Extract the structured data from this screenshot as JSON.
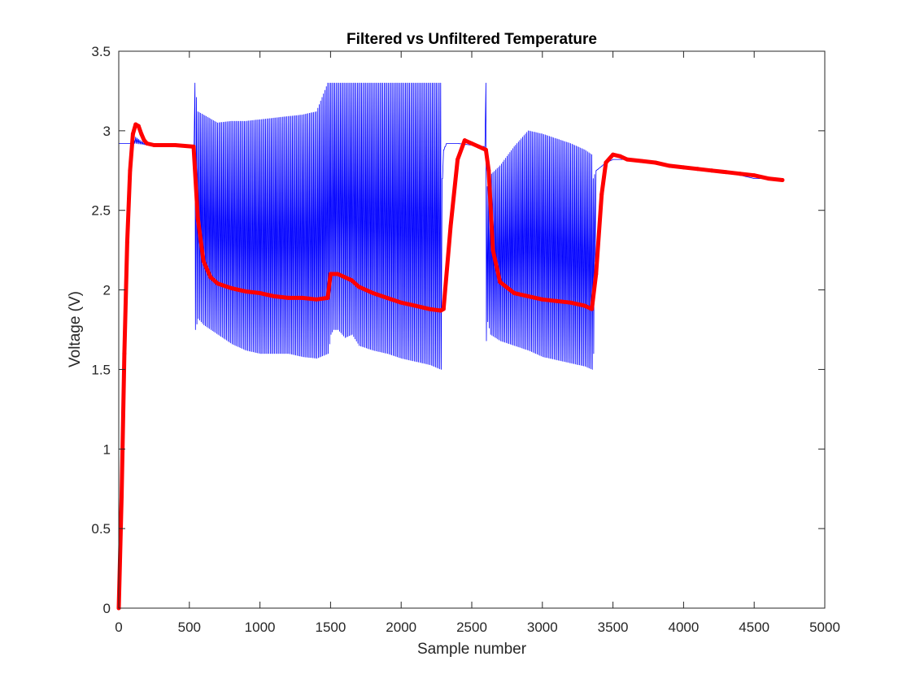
{
  "chart_data": {
    "type": "line",
    "title": "Filtered vs Unfiltered Temperature",
    "xlabel": "Sample number",
    "ylabel": "Voltage (V)",
    "xlim": [
      0,
      5000
    ],
    "ylim": [
      0,
      3.5
    ],
    "x_ticks": [
      0,
      500,
      1000,
      1500,
      2000,
      2500,
      3000,
      3500,
      4000,
      4500,
      5000
    ],
    "y_ticks": [
      0,
      0.5,
      1,
      1.5,
      2,
      2.5,
      3,
      3.5
    ],
    "x_tick_labels": [
      "0",
      "500",
      "1000",
      "1500",
      "2000",
      "2500",
      "3000",
      "3500",
      "4000",
      "4500",
      "5000"
    ],
    "y_tick_labels": [
      "0",
      "0.5",
      "1",
      "1.5",
      "2",
      "2.5",
      "3",
      "3.5"
    ],
    "grid": false,
    "legend": "none",
    "series": [
      {
        "id": "unfiltered",
        "color": "#0000ff",
        "style": "thin-line",
        "x": [
          0,
          100,
          120,
          200,
          300,
          400,
          530,
          540,
          560,
          600,
          700,
          800,
          900,
          1000,
          1100,
          1200,
          1300,
          1400,
          1480,
          1500,
          1520,
          1550,
          1600,
          1650,
          1700,
          1800,
          1900,
          2000,
          2100,
          2200,
          2280,
          2290,
          2300,
          2320,
          2400,
          2500,
          2590,
          2600,
          2610,
          2630,
          2700,
          2800,
          2900,
          3000,
          3100,
          3200,
          3300,
          3350,
          3360,
          3380,
          3450,
          3500,
          3600,
          3700,
          3800,
          3900,
          4000,
          4100,
          4200,
          4300,
          4400,
          4500,
          4600,
          4700
        ],
        "y_low": [
          2.92,
          2.92,
          2.92,
          2.91,
          2.91,
          2.91,
          2.91,
          1.75,
          1.82,
          1.78,
          1.72,
          1.66,
          1.62,
          1.6,
          1.6,
          1.6,
          1.58,
          1.57,
          1.6,
          1.72,
          1.75,
          1.75,
          1.7,
          1.72,
          1.65,
          1.62,
          1.6,
          1.57,
          1.55,
          1.53,
          1.5,
          2.7,
          2.88,
          2.92,
          2.92,
          2.91,
          2.9,
          1.68,
          1.8,
          1.72,
          1.68,
          1.65,
          1.62,
          1.58,
          1.56,
          1.54,
          1.52,
          1.5,
          1.6,
          2.75,
          2.8,
          2.82,
          2.82,
          2.81,
          2.8,
          2.78,
          2.76,
          2.76,
          2.75,
          2.74,
          2.72,
          2.7,
          2.7,
          2.69
        ],
        "y_high": [
          2.92,
          2.92,
          2.96,
          2.91,
          2.91,
          2.91,
          2.91,
          3.3,
          3.12,
          3.1,
          3.05,
          3.06,
          3.06,
          3.07,
          3.08,
          3.09,
          3.1,
          3.12,
          3.3,
          3.3,
          3.3,
          3.3,
          3.3,
          3.3,
          3.3,
          3.3,
          3.3,
          3.3,
          3.3,
          3.3,
          3.3,
          2.7,
          2.88,
          2.92,
          2.92,
          2.91,
          2.9,
          3.3,
          2.65,
          2.72,
          2.78,
          2.9,
          3.0,
          2.98,
          2.95,
          2.92,
          2.88,
          2.85,
          2.7,
          2.75,
          2.8,
          2.82,
          2.82,
          2.81,
          2.8,
          2.78,
          2.76,
          2.76,
          2.75,
          2.74,
          2.72,
          2.7,
          2.7,
          2.69
        ]
      },
      {
        "id": "filtered",
        "color": "#ff0000",
        "style": "thick-line",
        "x": [
          0,
          20,
          40,
          60,
          80,
          100,
          120,
          140,
          160,
          180,
          200,
          250,
          300,
          400,
          530,
          560,
          600,
          650,
          700,
          800,
          900,
          1000,
          1100,
          1200,
          1300,
          1400,
          1480,
          1500,
          1550,
          1600,
          1650,
          1700,
          1800,
          1900,
          2000,
          2100,
          2200,
          2280,
          2300,
          2350,
          2400,
          2450,
          2500,
          2550,
          2600,
          2620,
          2650,
          2700,
          2800,
          2900,
          3000,
          3100,
          3200,
          3300,
          3350,
          3380,
          3420,
          3450,
          3500,
          3550,
          3600,
          3700,
          3800,
          3900,
          4000,
          4100,
          4200,
          4300,
          4400,
          4500,
          4600,
          4700
        ],
        "y": [
          0.0,
          0.7,
          1.6,
          2.3,
          2.75,
          2.98,
          3.04,
          3.03,
          2.98,
          2.94,
          2.92,
          2.91,
          2.91,
          2.91,
          2.9,
          2.45,
          2.18,
          2.08,
          2.04,
          2.01,
          1.99,
          1.98,
          1.96,
          1.95,
          1.95,
          1.94,
          1.95,
          2.1,
          2.1,
          2.08,
          2.06,
          2.02,
          1.98,
          1.95,
          1.92,
          1.9,
          1.88,
          1.87,
          1.88,
          2.4,
          2.82,
          2.94,
          2.92,
          2.9,
          2.88,
          2.75,
          2.25,
          2.05,
          1.98,
          1.96,
          1.94,
          1.93,
          1.92,
          1.9,
          1.88,
          2.1,
          2.6,
          2.8,
          2.85,
          2.84,
          2.82,
          2.81,
          2.8,
          2.78,
          2.77,
          2.76,
          2.75,
          2.74,
          2.73,
          2.72,
          2.7,
          2.69
        ]
      }
    ]
  }
}
